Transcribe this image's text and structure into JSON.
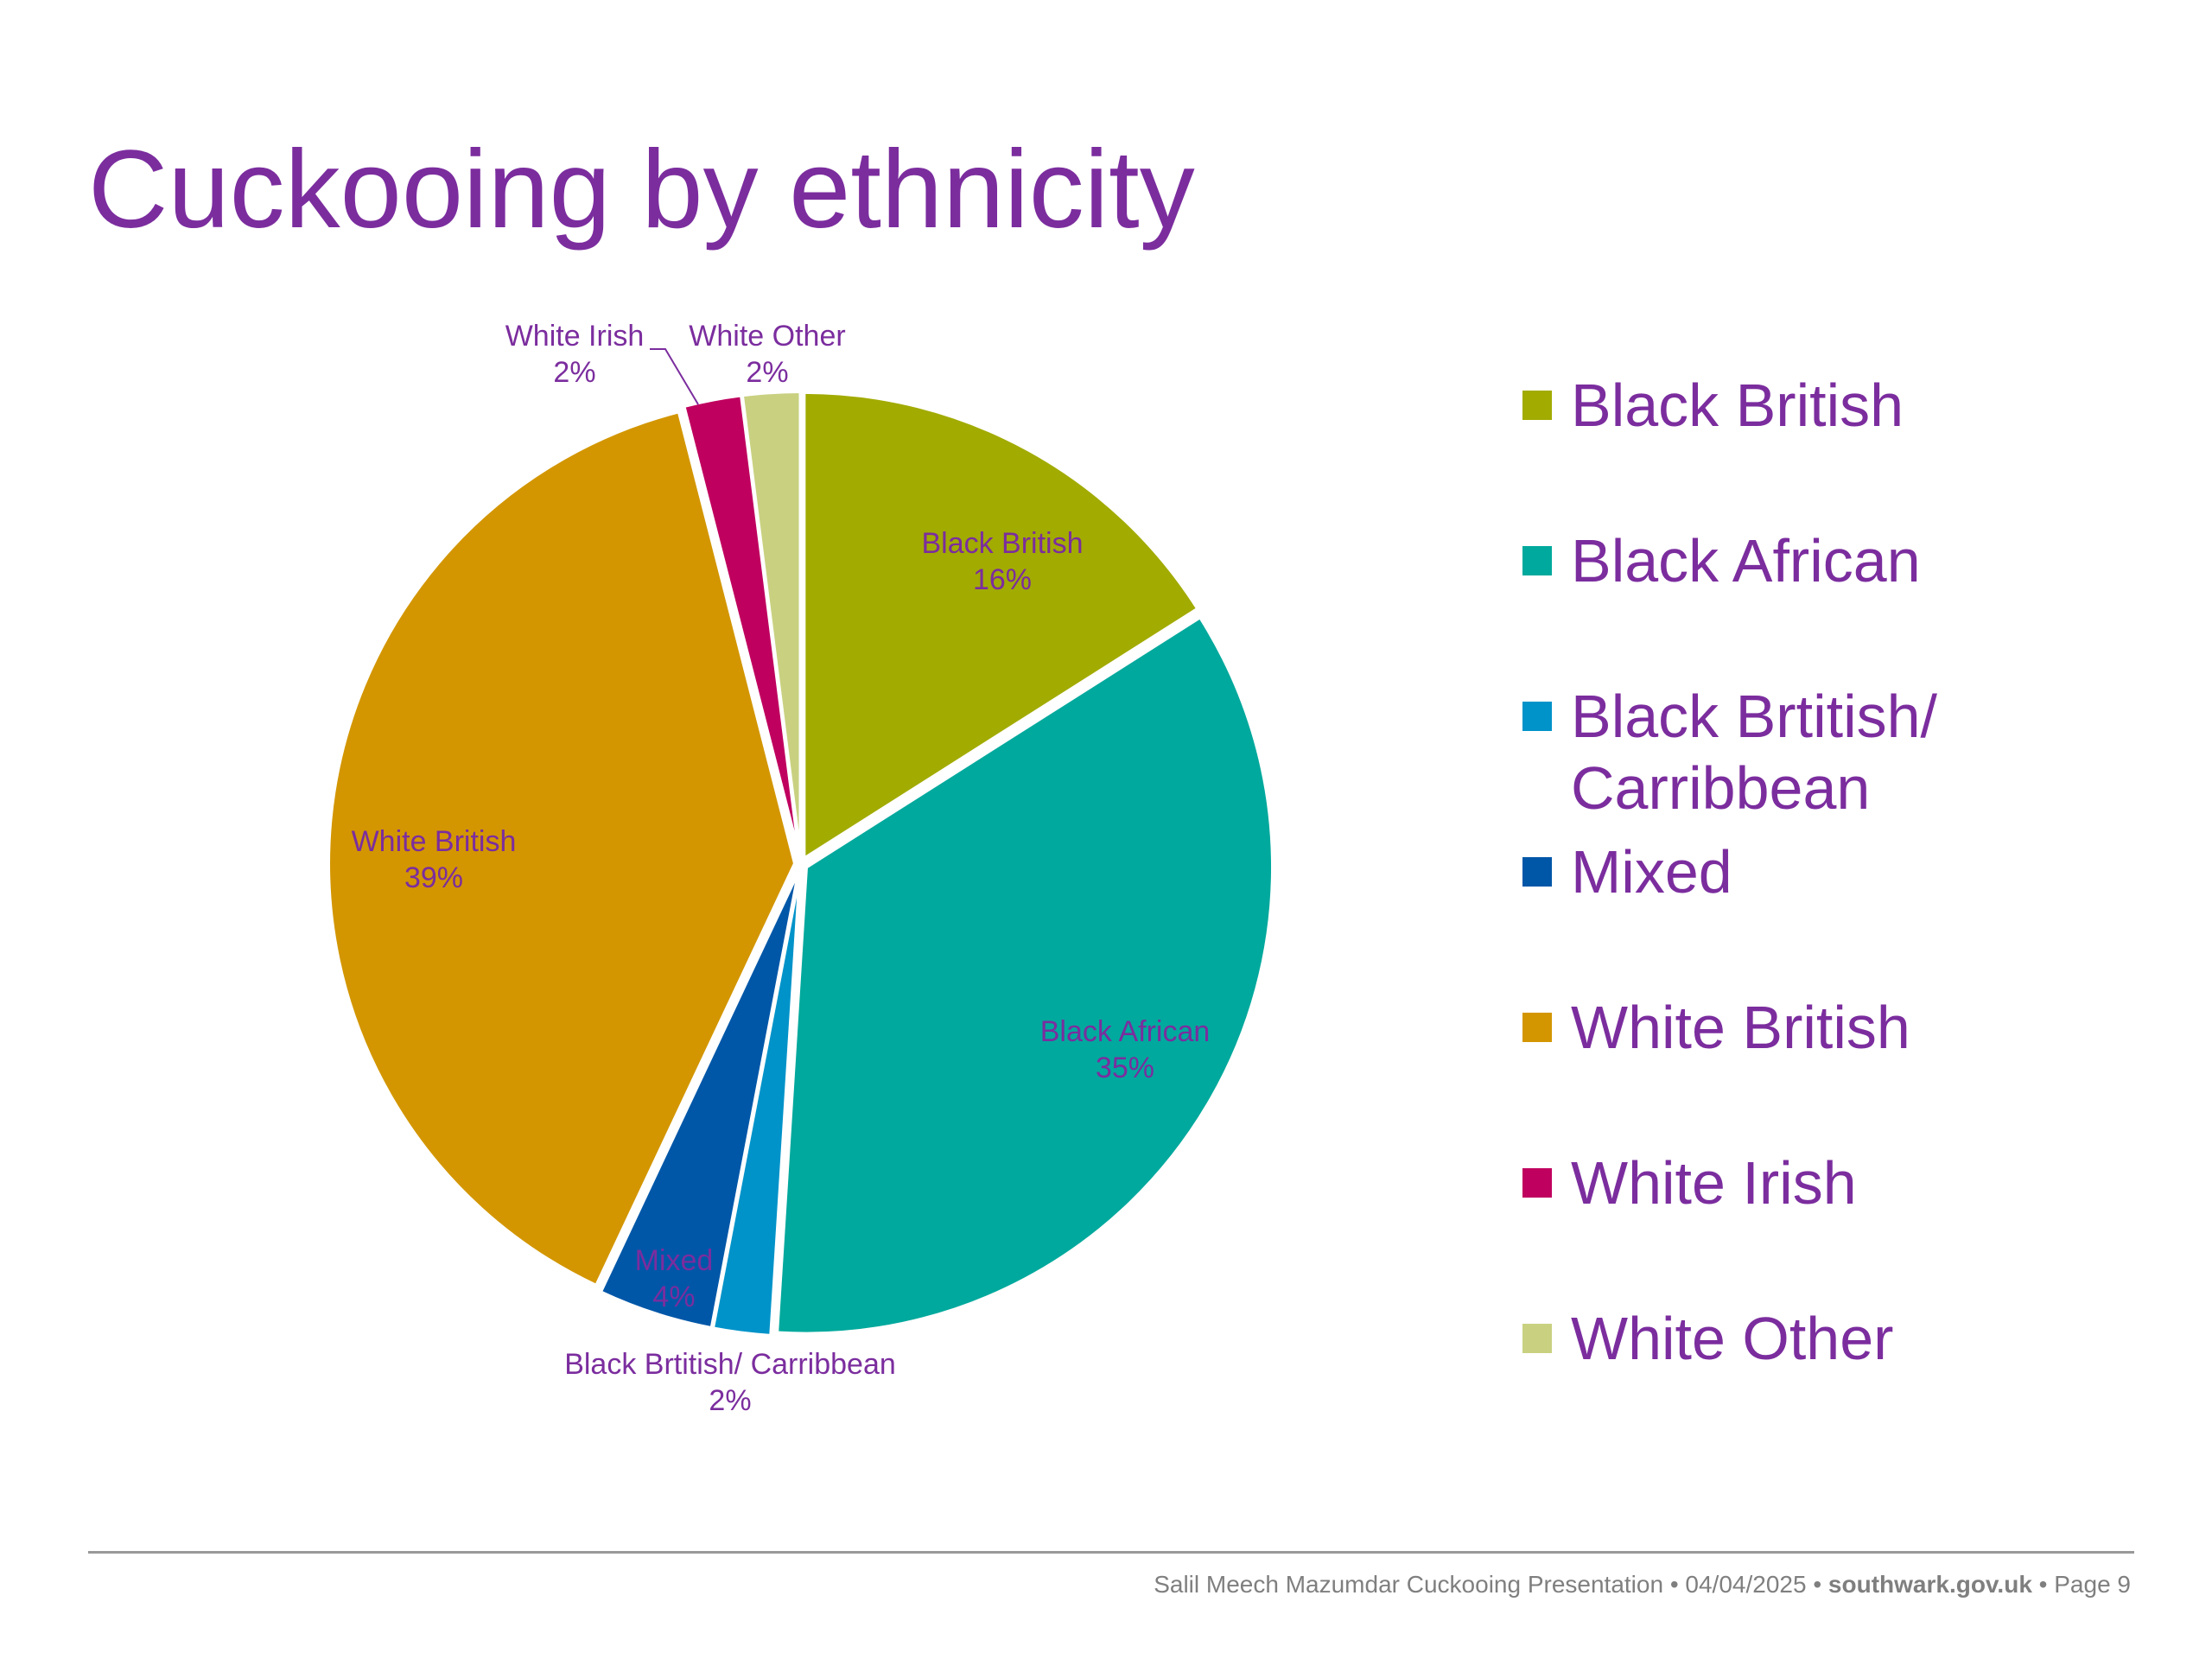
{
  "slide": {
    "title": "Cuckooing by ethnicity"
  },
  "chart_data": {
    "type": "pie",
    "title": "",
    "categories": [
      "Black British",
      "Black African",
      "Black Brtitish/ Carribbean",
      "Mixed",
      "White British",
      "White Irish",
      "White Other"
    ],
    "values": [
      16,
      35,
      2,
      4,
      39,
      2,
      2
    ],
    "value_labels": [
      "16%",
      "35%",
      "2%",
      "4%",
      "39%",
      "2%",
      "2%"
    ],
    "colors": [
      "#a2ab00",
      "#00a99d",
      "#0093c9",
      "#0057a8",
      "#d39600",
      "#c0005f",
      "#c9d181"
    ],
    "legend_position": "right",
    "label_color": "#7b2d9e"
  },
  "legend": {
    "items": [
      {
        "label": "Black British"
      },
      {
        "label": "Black African"
      },
      {
        "label": "Black Brtitish/ Carribbean"
      },
      {
        "label": "Mixed"
      },
      {
        "label": "White British"
      },
      {
        "label": "White Irish"
      },
      {
        "label": "White Other"
      }
    ]
  },
  "footer": {
    "prefix": "Salil Meech Mazumdar Cuckooing Presentation • 04/04/2025 • ",
    "site": "southwark.gov.uk",
    "suffix": " • Page 9"
  }
}
